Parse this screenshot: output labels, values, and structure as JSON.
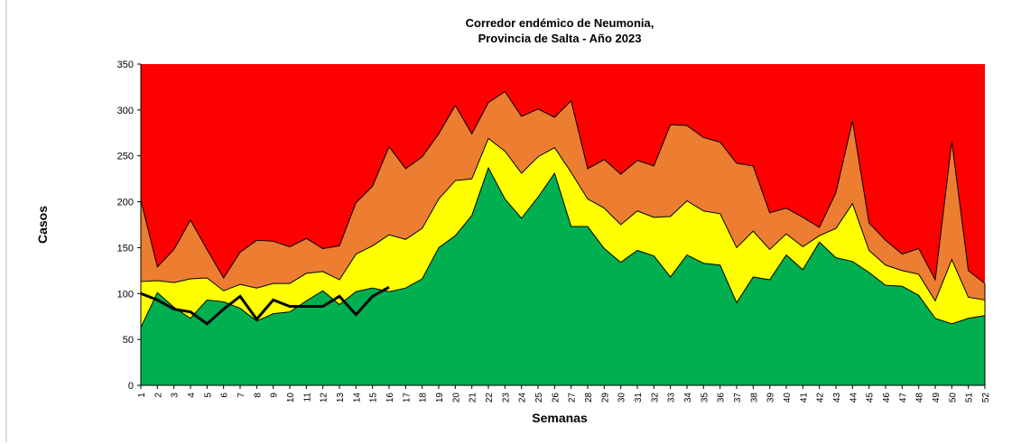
{
  "chart_data": {
    "type": "area",
    "title": [
      "Corredor endémico de Neumonia,",
      "Provincia de Salta - Año 2023"
    ],
    "x_label": "Semanas",
    "y_label": "Casos",
    "plot_background": "#ff0000",
    "categories": [
      "1",
      "2",
      "3",
      "4",
      "5",
      "6",
      "7",
      "8",
      "9",
      "10",
      "11",
      "12",
      "13",
      "14",
      "15",
      "16",
      "17",
      "18",
      "19",
      "20",
      "21",
      "22",
      "23",
      "24",
      "25",
      "26",
      "27",
      "28",
      "29",
      "30",
      "31",
      "32",
      "33",
      "34",
      "35",
      "36",
      "37",
      "38",
      "39",
      "40",
      "41",
      "42",
      "43",
      "44",
      "45",
      "46",
      "47",
      "48",
      "49",
      "50",
      "51",
      "52"
    ],
    "ylim": [
      0,
      350
    ],
    "yticks": [
      0,
      50,
      100,
      150,
      200,
      250,
      300,
      350
    ],
    "series": [
      {
        "type": "area",
        "color": "#ed7d31",
        "values": [
          202,
          129,
          148,
          180,
          148,
          117,
          145,
          158,
          157,
          151,
          160,
          149,
          152,
          199,
          217,
          260,
          236,
          249,
          274,
          305,
          274,
          308,
          320,
          293,
          301,
          292,
          310,
          236,
          246,
          230,
          245,
          239,
          284,
          283,
          270,
          265,
          242,
          239,
          188,
          193,
          183,
          172,
          210,
          288,
          177,
          158,
          143,
          149,
          115,
          266,
          125,
          111
        ]
      },
      {
        "type": "area",
        "color": "#ffff00",
        "values": [
          113,
          114,
          112,
          116,
          117,
          103,
          110,
          106,
          111,
          111,
          122,
          124,
          115,
          143,
          152,
          164,
          159,
          171,
          203,
          223,
          225,
          269,
          255,
          231,
          249,
          259,
          232,
          203,
          193,
          175,
          190,
          183,
          184,
          201,
          190,
          187,
          150,
          168,
          148,
          165,
          151,
          163,
          171,
          198,
          147,
          131,
          125,
          121,
          92,
          137,
          96,
          93
        ]
      },
      {
        "type": "area",
        "color": "#00b050",
        "values": [
          63,
          101,
          85,
          73,
          93,
          91,
          84,
          70,
          78,
          80,
          92,
          103,
          88,
          102,
          106,
          102,
          106,
          116,
          150,
          163,
          185,
          237,
          203,
          182,
          205,
          231,
          173,
          173,
          149,
          134,
          147,
          141,
          118,
          142,
          133,
          131,
          90,
          118,
          115,
          142,
          126,
          156,
          139,
          135,
          123,
          109,
          108,
          98,
          73,
          67,
          73,
          76
        ]
      },
      {
        "type": "line",
        "color": "#000000",
        "values": [
          100,
          93,
          83,
          80,
          67,
          83,
          97,
          72,
          93,
          86,
          86,
          86,
          97,
          77,
          97,
          107,
          null,
          null,
          null,
          null,
          null,
          null,
          null,
          null,
          null,
          null,
          null,
          null,
          null,
          null,
          null,
          null,
          null,
          null,
          null,
          null,
          null,
          null,
          null,
          null,
          null,
          null,
          null,
          null,
          null,
          null,
          null,
          null,
          null,
          null,
          null,
          null
        ]
      }
    ]
  }
}
